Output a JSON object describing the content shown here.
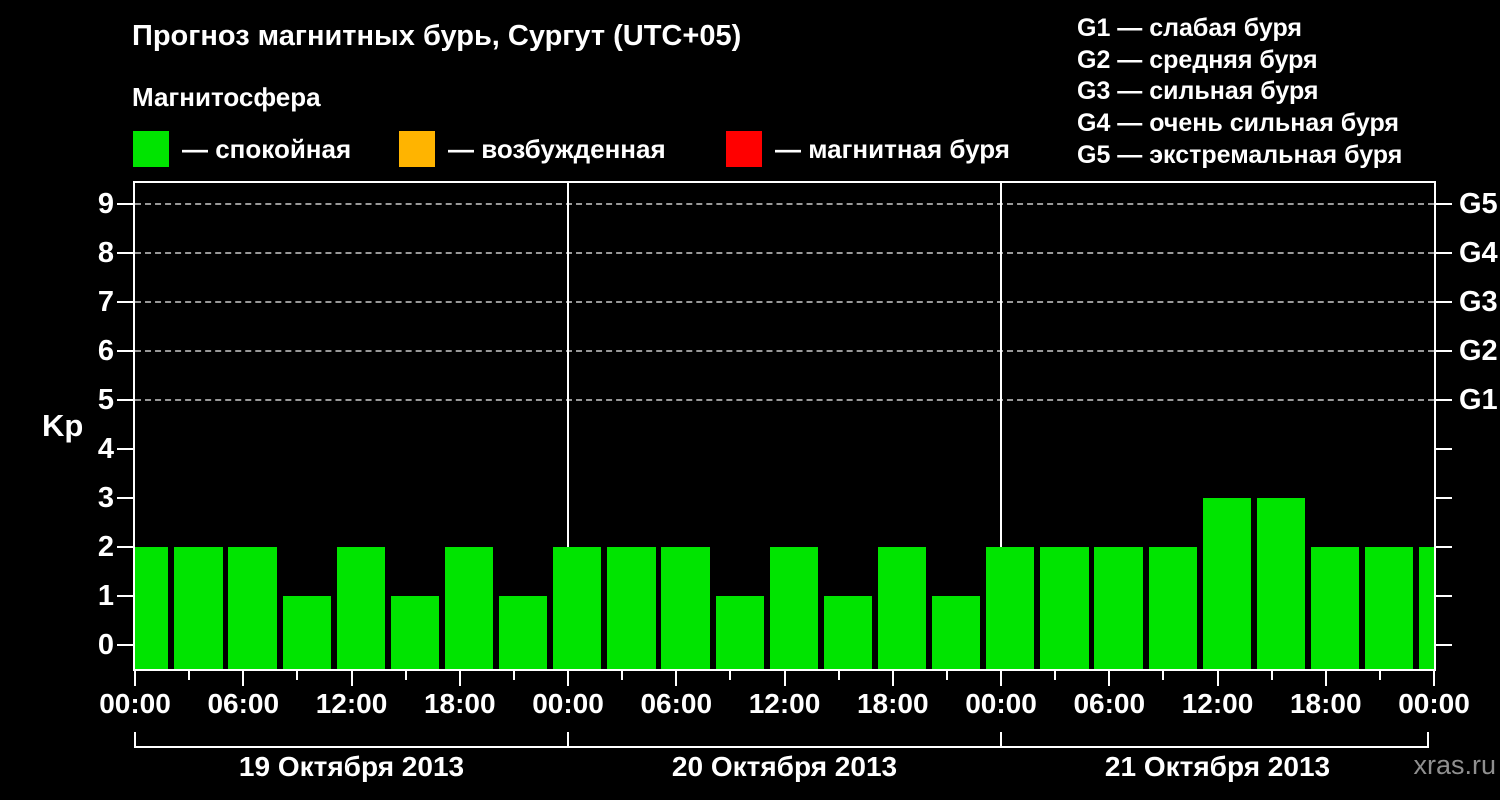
{
  "title": "Прогноз магнитных бурь, Сургут (UTC+05)",
  "subtitle": "Магнитосфера",
  "magnetosphere_legend": [
    {
      "label": "— спокойная",
      "color": "#00e400"
    },
    {
      "label": "— возбужденная",
      "color": "#ffb400"
    },
    {
      "label": "— магнитная буря",
      "color": "#ff0000"
    }
  ],
  "g_scale_legend": [
    "G1 — слабая буря",
    "G2 — средняя буря",
    "G3 — сильная буря",
    "G4 — очень сильная буря",
    "G5 — экстремальная буря"
  ],
  "watermark": "xras.ru",
  "chart_data": {
    "type": "bar",
    "ylabel": "Kp",
    "ylim": [
      0,
      9
    ],
    "y_ticks": [
      0,
      1,
      2,
      3,
      4,
      5,
      6,
      7,
      8,
      9
    ],
    "gridlines_at": [
      5,
      6,
      7,
      8,
      9
    ],
    "grid_style": "dashed horizontal lines at storm levels",
    "right_axis_labels": [
      {
        "kp": 5,
        "label": "G1"
      },
      {
        "kp": 6,
        "label": "G2"
      },
      {
        "kp": 7,
        "label": "G3"
      },
      {
        "kp": 8,
        "label": "G4"
      },
      {
        "kp": 9,
        "label": "G5"
      }
    ],
    "x_tick_labels": [
      "00:00",
      "06:00",
      "12:00",
      "18:00",
      "00:00",
      "06:00",
      "12:00",
      "18:00",
      "00:00",
      "06:00",
      "12:00",
      "18:00",
      "00:00"
    ],
    "interval_hours": 3,
    "bar_color": "#00e400",
    "legend_position": "top",
    "days": [
      {
        "date": "19 Октября 2013",
        "values": [
          2,
          2,
          2,
          1,
          2,
          1,
          2,
          1
        ]
      },
      {
        "date": "20 Октября 2013",
        "values": [
          2,
          2,
          2,
          1,
          2,
          1,
          2,
          1
        ]
      },
      {
        "date": "21 Октября 2013",
        "values": [
          2,
          2,
          2,
          2,
          3,
          3,
          2,
          2
        ]
      }
    ],
    "trailing_value": 2
  }
}
